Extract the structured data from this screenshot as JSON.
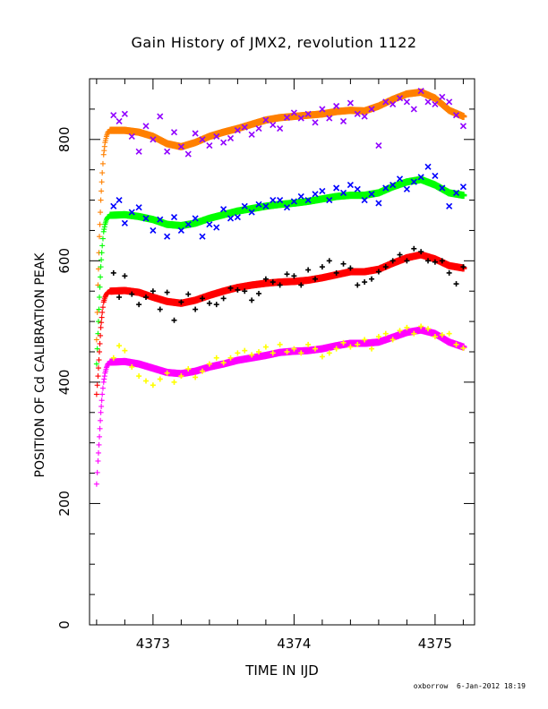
{
  "chart_data": {
    "type": "scatter",
    "title": "Gain History of JMX2, revolution 1122",
    "xlabel": "TIME IN IJD",
    "ylabel": "POSITION OF Cd CALIBRATION PEAK",
    "xlim": [
      4372.55,
      4375.28
    ],
    "ylim": [
      0,
      900
    ],
    "xticks": [
      4373,
      4374,
      4375
    ],
    "yticks": [
      0,
      200,
      400,
      600,
      800
    ],
    "grid": false,
    "legend": "none",
    "series": [
      {
        "color": "#ff8000",
        "marker": "cross",
        "role": "rise",
        "x": [
          4372.6,
          4372.61,
          4372.62,
          4372.63,
          4372.64,
          4372.65,
          4372.66,
          4372.67,
          4372.68,
          4372.7
        ],
        "y": [
          470,
          560,
          640,
          700,
          745,
          775,
          795,
          805,
          812,
          815
        ]
      },
      {
        "color": "#ff8000",
        "marker": "cross",
        "role": "smooth",
        "x": [
          4372.7,
          4372.8,
          4372.9,
          4373.0,
          4373.1,
          4373.2,
          4373.3,
          4373.4,
          4373.5,
          4373.6,
          4373.7,
          4373.8,
          4373.9,
          4374.0,
          4374.1,
          4374.2,
          4374.3,
          4374.4,
          4374.5,
          4374.6,
          4374.7,
          4374.8,
          4374.9,
          4375.0,
          4375.1,
          4375.2
        ],
        "y": [
          815,
          815,
          812,
          805,
          793,
          788,
          795,
          805,
          812,
          818,
          825,
          832,
          836,
          838,
          840,
          842,
          846,
          848,
          847,
          855,
          866,
          875,
          878,
          868,
          848,
          838
        ]
      },
      {
        "color": "#9000ff",
        "marker": "x",
        "role": "raw",
        "x": [
          4372.72,
          4372.76,
          4372.8,
          4372.85,
          4372.9,
          4372.95,
          4373.0,
          4373.05,
          4373.1,
          4373.15,
          4373.2,
          4373.25,
          4373.3,
          4373.35,
          4373.4,
          4373.45,
          4373.5,
          4373.55,
          4373.6,
          4373.65,
          4373.7,
          4373.75,
          4373.8,
          4373.85,
          4373.9,
          4373.95,
          4374.0,
          4374.05,
          4374.1,
          4374.15,
          4374.2,
          4374.25,
          4374.3,
          4374.35,
          4374.4,
          4374.45,
          4374.5,
          4374.55,
          4374.6,
          4374.65,
          4374.7,
          4374.75,
          4374.8,
          4374.85,
          4374.9,
          4374.95,
          4375.0,
          4375.05,
          4375.1,
          4375.15,
          4375.2
        ],
        "y": [
          840,
          830,
          842,
          805,
          780,
          822,
          800,
          838,
          780,
          812,
          788,
          776,
          810,
          800,
          790,
          805,
          795,
          802,
          815,
          820,
          808,
          818,
          832,
          824,
          818,
          836,
          844,
          835,
          842,
          828,
          850,
          835,
          855,
          830,
          860,
          842,
          838,
          850,
          790,
          862,
          858,
          868,
          862,
          850,
          880,
          862,
          858,
          870,
          862,
          840,
          822
        ]
      },
      {
        "color": "#00ff00",
        "marker": "cross",
        "role": "rise",
        "x": [
          4372.6,
          4372.61,
          4372.62,
          4372.63,
          4372.64,
          4372.65,
          4372.66,
          4372.67,
          4372.68,
          4372.7
        ],
        "y": [
          430,
          480,
          540,
          590,
          625,
          648,
          660,
          668,
          672,
          675
        ]
      },
      {
        "color": "#00ff00",
        "marker": "cross",
        "role": "smooth",
        "x": [
          4372.7,
          4372.8,
          4372.9,
          4373.0,
          4373.1,
          4373.2,
          4373.3,
          4373.4,
          4373.5,
          4373.6,
          4373.7,
          4373.8,
          4373.9,
          4374.0,
          4374.1,
          4374.2,
          4374.3,
          4374.4,
          4374.5,
          4374.6,
          4374.7,
          4374.8,
          4374.9,
          4375.0,
          4375.1,
          4375.2
        ],
        "y": [
          675,
          676,
          673,
          668,
          660,
          658,
          662,
          670,
          676,
          682,
          686,
          690,
          693,
          695,
          698,
          702,
          706,
          708,
          708,
          712,
          722,
          730,
          734,
          725,
          712,
          708
        ]
      },
      {
        "color": "#0000ff",
        "marker": "x",
        "role": "raw",
        "x": [
          4372.72,
          4372.76,
          4372.8,
          4372.85,
          4372.9,
          4372.95,
          4373.0,
          4373.05,
          4373.1,
          4373.15,
          4373.2,
          4373.25,
          4373.3,
          4373.35,
          4373.4,
          4373.45,
          4373.5,
          4373.55,
          4373.6,
          4373.65,
          4373.7,
          4373.75,
          4373.8,
          4373.85,
          4373.9,
          4373.95,
          4374.0,
          4374.05,
          4374.1,
          4374.15,
          4374.2,
          4374.25,
          4374.3,
          4374.35,
          4374.4,
          4374.45,
          4374.5,
          4374.55,
          4374.6,
          4374.65,
          4374.7,
          4374.75,
          4374.8,
          4374.85,
          4374.9,
          4374.95,
          4375.0,
          4375.05,
          4375.1,
          4375.15,
          4375.2
        ],
        "y": [
          690,
          700,
          662,
          680,
          688,
          670,
          650,
          668,
          640,
          672,
          650,
          660,
          670,
          640,
          660,
          655,
          685,
          670,
          672,
          690,
          680,
          693,
          690,
          700,
          700,
          688,
          698,
          706,
          700,
          710,
          715,
          700,
          720,
          712,
          725,
          718,
          700,
          710,
          695,
          720,
          725,
          735,
          718,
          730,
          738,
          755,
          740,
          720,
          690,
          712,
          722
        ]
      },
      {
        "color": "#ff0000",
        "marker": "cross",
        "role": "rise",
        "x": [
          4372.6,
          4372.61,
          4372.62,
          4372.63,
          4372.64,
          4372.65,
          4372.66,
          4372.67,
          4372.68,
          4372.7
        ],
        "y": [
          380,
          410,
          450,
          490,
          515,
          532,
          540,
          545,
          548,
          550
        ]
      },
      {
        "color": "#ff0000",
        "marker": "cross",
        "role": "smooth",
        "x": [
          4372.7,
          4372.8,
          4372.9,
          4373.0,
          4373.1,
          4373.2,
          4373.3,
          4373.4,
          4373.5,
          4373.6,
          4373.7,
          4373.8,
          4373.9,
          4374.0,
          4374.1,
          4374.2,
          4374.3,
          4374.4,
          4374.5,
          4374.6,
          4374.7,
          4374.8,
          4374.9,
          4375.0,
          4375.1,
          4375.2
        ],
        "y": [
          550,
          551,
          548,
          540,
          533,
          530,
          535,
          543,
          550,
          556,
          560,
          563,
          565,
          566,
          568,
          572,
          577,
          582,
          582,
          586,
          596,
          605,
          610,
          603,
          592,
          588
        ]
      },
      {
        "color": "#000000",
        "marker": "cross",
        "role": "raw",
        "x": [
          4372.72,
          4372.76,
          4372.8,
          4372.85,
          4372.9,
          4372.95,
          4373.0,
          4373.05,
          4373.1,
          4373.15,
          4373.2,
          4373.25,
          4373.3,
          4373.35,
          4373.4,
          4373.45,
          4373.5,
          4373.55,
          4373.6,
          4373.65,
          4373.7,
          4373.75,
          4373.8,
          4373.85,
          4373.9,
          4373.95,
          4374.0,
          4374.05,
          4374.1,
          4374.15,
          4374.2,
          4374.25,
          4374.3,
          4374.35,
          4374.4,
          4374.45,
          4374.5,
          4374.55,
          4374.6,
          4374.65,
          4374.7,
          4374.75,
          4374.8,
          4374.85,
          4374.9,
          4374.95,
          4375.0,
          4375.05,
          4375.1,
          4375.15,
          4375.2
        ],
        "y": [
          580,
          540,
          575,
          545,
          528,
          540,
          550,
          520,
          548,
          502,
          532,
          545,
          520,
          538,
          530,
          528,
          538,
          555,
          552,
          550,
          535,
          546,
          570,
          565,
          560,
          578,
          575,
          560,
          585,
          570,
          590,
          600,
          580,
          595,
          588,
          560,
          565,
          570,
          582,
          590,
          600,
          610,
          600,
          620,
          615,
          600,
          598,
          600,
          580,
          562,
          590
        ]
      },
      {
        "color": "#ff00ff",
        "marker": "cross",
        "role": "rise",
        "x": [
          4372.6,
          4372.61,
          4372.62,
          4372.63,
          4372.64,
          4372.65,
          4372.66,
          4372.67,
          4372.68,
          4372.7
        ],
        "y": [
          232,
          270,
          310,
          350,
          380,
          400,
          415,
          424,
          430,
          433
        ]
      },
      {
        "color": "#ff00ff",
        "marker": "cross",
        "role": "smooth",
        "x": [
          4372.7,
          4372.8,
          4372.9,
          4373.0,
          4373.1,
          4373.2,
          4373.3,
          4373.4,
          4373.5,
          4373.6,
          4373.7,
          4373.8,
          4373.9,
          4374.0,
          4374.1,
          4374.2,
          4374.3,
          4374.4,
          4374.5,
          4374.6,
          4374.7,
          4374.8,
          4374.9,
          4375.0,
          4375.1,
          4375.2
        ],
        "y": [
          433,
          434,
          430,
          423,
          416,
          414,
          418,
          425,
          430,
          436,
          440,
          444,
          449,
          451,
          452,
          455,
          460,
          464,
          464,
          466,
          474,
          482,
          486,
          480,
          466,
          458
        ]
      },
      {
        "color": "#ffff00",
        "marker": "cross",
        "role": "raw",
        "x": [
          4372.72,
          4372.76,
          4372.8,
          4372.85,
          4372.9,
          4372.95,
          4373.0,
          4373.05,
          4373.1,
          4373.15,
          4373.2,
          4373.25,
          4373.3,
          4373.35,
          4373.4,
          4373.45,
          4373.5,
          4373.55,
          4373.6,
          4373.65,
          4373.7,
          4373.75,
          4373.8,
          4373.85,
          4373.9,
          4373.95,
          4374.0,
          4374.05,
          4374.1,
          4374.15,
          4374.2,
          4374.25,
          4374.3,
          4374.35,
          4374.4,
          4374.45,
          4374.5,
          4374.55,
          4374.6,
          4374.65,
          4374.7,
          4374.75,
          4374.8,
          4374.85,
          4374.9,
          4374.95,
          4375.0,
          4375.05,
          4375.1,
          4375.15,
          4375.2
        ],
        "y": [
          440,
          460,
          452,
          425,
          410,
          402,
          395,
          405,
          415,
          400,
          410,
          422,
          408,
          418,
          430,
          440,
          432,
          440,
          448,
          452,
          445,
          450,
          458,
          448,
          462,
          450,
          455,
          448,
          462,
          455,
          442,
          448,
          455,
          465,
          458,
          462,
          470,
          455,
          475,
          480,
          470,
          485,
          490,
          480,
          492,
          488,
          475,
          478,
          480,
          462,
          456
        ]
      }
    ]
  },
  "footer": {
    "user": "oxborrow",
    "timestamp": "6-Jan-2012 18:19"
  }
}
